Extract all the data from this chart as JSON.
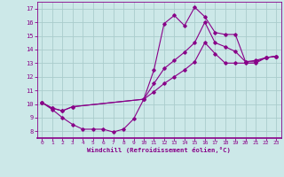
{
  "bg_color": "#cce8e8",
  "grid_color": "#aacccc",
  "line_color": "#880088",
  "xlabel": "Windchill (Refroidissement éolien,°C)",
  "xlim": [
    -0.5,
    23.5
  ],
  "ylim": [
    7.5,
    17.5
  ],
  "xticks": [
    0,
    1,
    2,
    3,
    4,
    5,
    6,
    7,
    8,
    9,
    10,
    11,
    12,
    13,
    14,
    15,
    16,
    17,
    18,
    19,
    20,
    21,
    22,
    23
  ],
  "yticks": [
    8,
    9,
    10,
    11,
    12,
    13,
    14,
    15,
    16,
    17
  ],
  "line1_x": [
    0,
    1,
    2,
    3,
    4,
    5,
    6,
    7,
    8,
    9,
    10,
    11,
    12,
    13,
    14,
    15,
    16,
    17,
    18,
    19,
    20,
    21,
    22,
    23
  ],
  "line1_y": [
    10.1,
    9.6,
    9.0,
    8.5,
    8.15,
    8.15,
    8.15,
    7.95,
    8.15,
    8.9,
    10.35,
    12.5,
    15.9,
    16.5,
    15.75,
    17.1,
    16.4,
    15.25,
    15.1,
    15.1,
    13.1,
    13.1,
    13.4,
    13.5
  ],
  "line2_x": [
    0,
    1,
    2,
    3,
    10,
    11,
    12,
    13,
    14,
    15,
    16,
    17,
    18,
    19,
    20,
    21,
    22,
    23
  ],
  "line2_y": [
    10.1,
    9.7,
    9.5,
    9.8,
    10.35,
    11.5,
    12.6,
    13.2,
    13.8,
    14.5,
    16.0,
    14.5,
    14.2,
    13.85,
    13.1,
    13.2,
    13.4,
    13.5
  ],
  "line3_x": [
    0,
    1,
    2,
    3,
    10,
    11,
    12,
    13,
    14,
    15,
    16,
    17,
    18,
    19,
    20,
    21,
    22,
    23
  ],
  "line3_y": [
    10.1,
    9.7,
    9.5,
    9.8,
    10.35,
    10.9,
    11.5,
    12.0,
    12.5,
    13.1,
    14.5,
    13.7,
    13.0,
    13.0,
    13.0,
    13.0,
    13.4,
    13.5
  ]
}
